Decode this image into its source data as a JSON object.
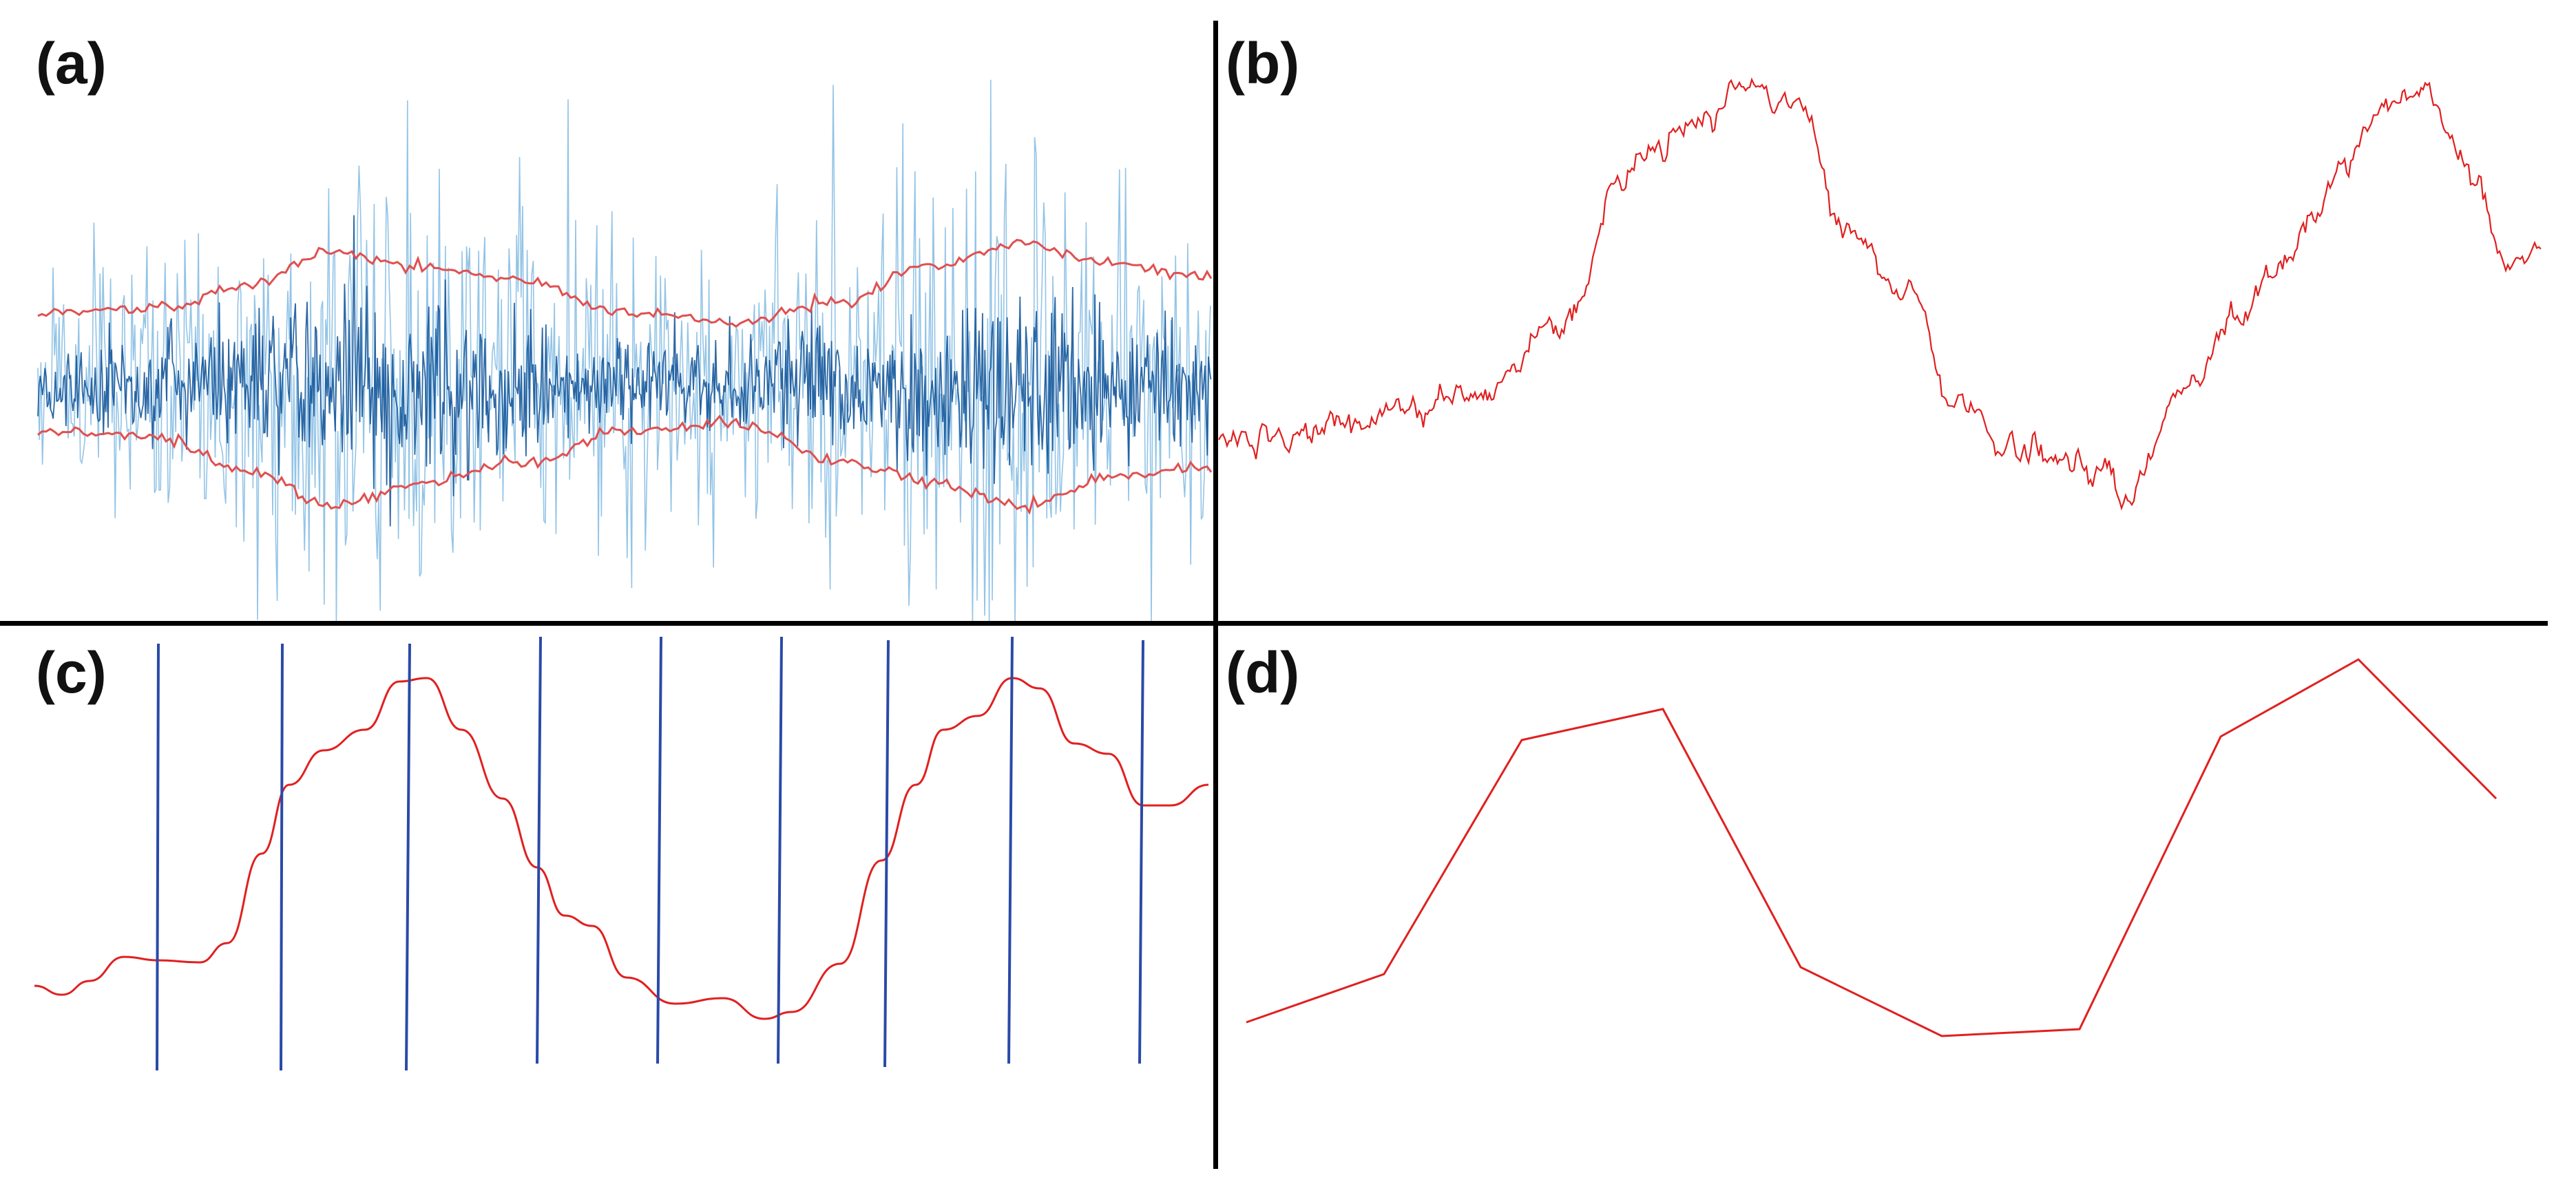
{
  "panels": {
    "a": {
      "label": "(a)"
    },
    "b": {
      "label": "(b)"
    },
    "c": {
      "label": "(c)"
    },
    "d": {
      "label": "(d)"
    }
  },
  "colors": {
    "signal_blue": "#1f6fb5",
    "signal_dark": "#0b4f95",
    "envelope_red": "#e05050",
    "trend_red": "#e02020",
    "marker_blue": "#2a4aa8",
    "divider": "#000000"
  },
  "icons": [
    "noise-signal-trace",
    "envelope-band",
    "smoothed-curve",
    "sampling-lines",
    "piecewise-line"
  ]
}
